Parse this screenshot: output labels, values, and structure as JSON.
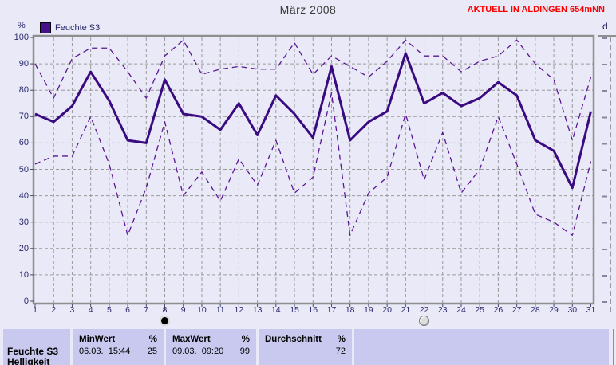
{
  "header": {
    "title": "März 2008",
    "status_text": "AKTUELL IN ALDINGEN 654mNN",
    "status_color": "#ff0000"
  },
  "legend": {
    "label": "Feuchte S3",
    "swatch_color": "#45108a"
  },
  "axes": {
    "y_unit": "%"
  },
  "side_panel": {
    "unit_label": "d"
  },
  "chart_data": {
    "type": "line",
    "title": "März 2008",
    "ylabel": "%",
    "ylim": [
      0,
      100
    ],
    "y_tick_step": 10,
    "grid": true,
    "legend_position": "top-left",
    "x": [
      1,
      2,
      3,
      4,
      5,
      6,
      7,
      8,
      9,
      10,
      11,
      12,
      13,
      14,
      15,
      16,
      17,
      18,
      19,
      20,
      21,
      22,
      23,
      24,
      25,
      26,
      27,
      28,
      29,
      30,
      31
    ],
    "series": [
      {
        "name": "max",
        "style": "dashed",
        "color": "#5a1694",
        "width": 1.3,
        "dash": "7 5",
        "values": [
          90,
          77,
          92,
          96,
          96,
          87,
          77,
          93,
          99,
          86,
          88,
          89,
          88,
          88,
          98,
          86,
          93,
          89,
          85,
          91,
          99,
          93,
          93,
          87,
          91,
          93,
          99,
          90,
          84,
          61,
          85
        ]
      },
      {
        "name": "Feuchte S3",
        "style": "solid",
        "color": "#3a0b80",
        "width": 3,
        "dash": "",
        "values": [
          71,
          68,
          74,
          87,
          76,
          61,
          60,
          84,
          71,
          70,
          65,
          75,
          63,
          78,
          71,
          62,
          89,
          61,
          68,
          72,
          94,
          75,
          79,
          74,
          77,
          83,
          78,
          61,
          57,
          43,
          72
        ]
      },
      {
        "name": "min",
        "style": "dashed",
        "color": "#5a1694",
        "width": 1.3,
        "dash": "7 5",
        "values": [
          52,
          55,
          55,
          70,
          52,
          25,
          43,
          68,
          40,
          49,
          38,
          54,
          44,
          61,
          41,
          47,
          79,
          25,
          41,
          47,
          71,
          46,
          64,
          41,
          50,
          70,
          52,
          33,
          30,
          25,
          53
        ]
      }
    ],
    "annotations": [
      {
        "day": 8,
        "phase": "new-moon"
      },
      {
        "day": 22,
        "phase": "full-moon"
      }
    ]
  },
  "stats_table": {
    "sensor_name": "Feuchte S3",
    "next_sensor_name": "Helligkeit",
    "min": {
      "label": "MinWert",
      "unit": "%",
      "timestamp": "06.03.  15:44",
      "value": "25"
    },
    "max": {
      "label": "MaxWert",
      "unit": "%",
      "timestamp": "09.03.  09:20",
      "value": "99"
    },
    "avg": {
      "label": "Durchschnitt",
      "unit": "%",
      "value": "72"
    }
  },
  "colors": {
    "page_bg": "#e9e9f7",
    "table_cell_bg": "#c9c9ef",
    "grid": "#9a9a9a",
    "border": "#8f8f8f",
    "main_line": "#3a0b80",
    "band_line": "#5a1694",
    "status_red": "#ff0000"
  }
}
